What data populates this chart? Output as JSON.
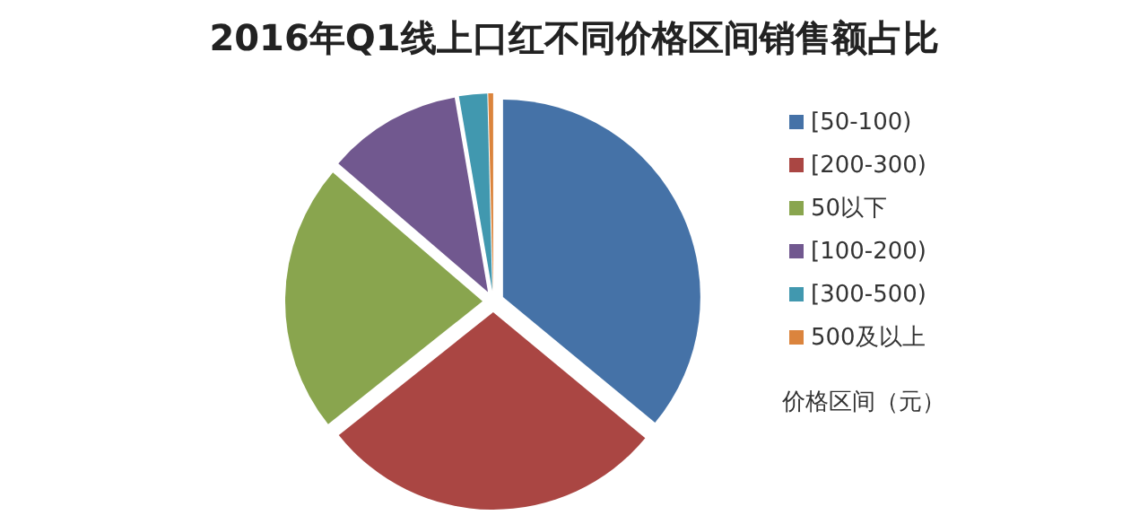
{
  "chart_data": {
    "type": "pie",
    "title": "2016年Q1线上口红不同价格区间销售额占比",
    "categories": [
      "[50-100)",
      "[200-300)",
      "50以下",
      "[100-200)",
      "[300-500)",
      "500及以上"
    ],
    "values": [
      36,
      28.3,
      22,
      11,
      2.3,
      0.4
    ],
    "colors": [
      "#4572a7",
      "#aa4643",
      "#89a54e",
      "#71588f",
      "#4198af",
      "#db843d"
    ],
    "legend": "right",
    "legend_title": "价格区间（元）"
  }
}
